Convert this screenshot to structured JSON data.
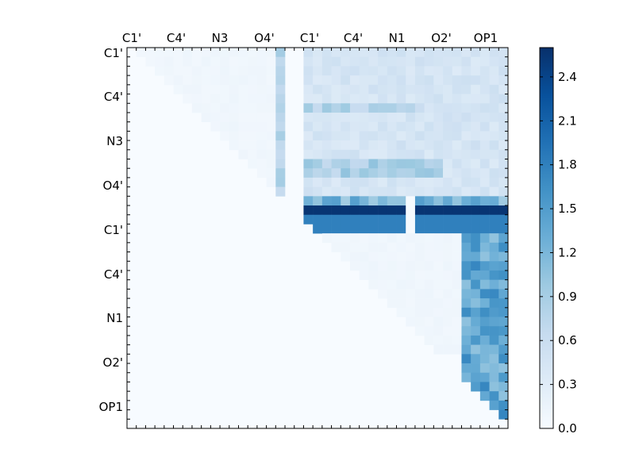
{
  "chart_data": {
    "type": "heatmap",
    "title": "",
    "xlabel": "",
    "ylabel": "",
    "x_tick_labels": [
      "C1'",
      "C4'",
      "N3",
      "O4'",
      "C1'",
      "C4'",
      "N1",
      "O2'",
      "OP1"
    ],
    "y_tick_labels": [
      "C1'",
      "C4'",
      "N3",
      "O4'",
      "C1'",
      "C4'",
      "N1",
      "O2'",
      "OP1"
    ],
    "x_axis_position": "top",
    "n_rows": 41,
    "n_cols": 41,
    "upper_triangular": true,
    "colormap": "Blues",
    "colorbar": {
      "range": [
        0.0,
        2.6
      ],
      "tick_labels": [
        "0.0",
        "0.3",
        "0.6",
        "0.9",
        "1.2",
        "1.5",
        "1.8",
        "2.1",
        "2.4"
      ],
      "tick_values": [
        0.0,
        0.3,
        0.6,
        0.9,
        1.2,
        1.5,
        1.8,
        2.1,
        2.4
      ],
      "placement": "right"
    },
    "regions": [
      {
        "rows": [
          0,
          19
        ],
        "cols": [
          1,
          16
        ],
        "value": 0.1,
        "description": "faint upper-left triangle block"
      },
      {
        "rows": [
          0,
          19
        ],
        "cols": [
          16,
          16
        ],
        "value": 0.75,
        "description": "light blue vertical stripe"
      },
      {
        "rows": [
          0,
          19
        ],
        "cols": [
          19,
          40
        ],
        "value": 0.45,
        "description": "light-medium band block"
      },
      {
        "rows": [
          6,
          6
        ],
        "cols": [
          19,
          31
        ],
        "value": 0.8,
        "description": "horizontal stripe"
      },
      {
        "rows": [
          12,
          13
        ],
        "cols": [
          19,
          33
        ],
        "value": 0.85,
        "description": "horizontal stripe"
      },
      {
        "rows": [
          16,
          16
        ],
        "cols": [
          19,
          40
        ],
        "value": 1.2,
        "description": "medium band"
      },
      {
        "rows": [
          17,
          17
        ],
        "cols": [
          19,
          40
        ],
        "value": 2.55,
        "description": "darkest band (gap at column 30)"
      },
      {
        "rows": [
          18,
          19
        ],
        "cols": [
          19,
          40
        ],
        "value": 1.8,
        "description": "dark band (gap at column 30)"
      },
      {
        "rows": [
          20,
          32
        ],
        "cols": [
          20,
          37
        ],
        "value": 0.1,
        "description": "faint lower area"
      },
      {
        "rows": [
          20,
          39
        ],
        "cols": [
          36,
          40
        ],
        "value": 1.4,
        "description": "right column stripes with bright cells"
      }
    ]
  }
}
